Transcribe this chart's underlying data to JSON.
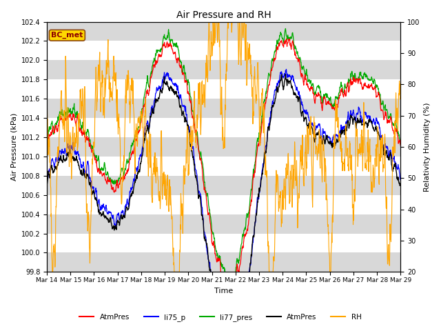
{
  "title": "Air Pressure and RH",
  "xlabel": "Time",
  "ylabel_left": "Air Pressure (kPa)",
  "ylabel_right": "Relativity Humidity (%)",
  "annotation": "BC_met",
  "ylim_left": [
    99.8,
    102.4
  ],
  "ylim_right": [
    20,
    100
  ],
  "yticks_left": [
    99.8,
    100.0,
    100.2,
    100.4,
    100.6,
    100.8,
    101.0,
    101.2,
    101.4,
    101.6,
    101.8,
    102.0,
    102.2,
    102.4
  ],
  "yticks_right": [
    20,
    30,
    40,
    50,
    60,
    70,
    80,
    90,
    100
  ],
  "xtick_labels": [
    "Mar 14",
    "Mar 15",
    "Mar 16",
    "Mar 17",
    "Mar 18",
    "Mar 19",
    "Mar 20",
    "Mar 21",
    "Mar 22",
    "Mar 23",
    "Mar 24",
    "Mar 25",
    "Mar 26",
    "Mar 27",
    "Mar 28",
    "Mar 29"
  ],
  "num_days": 15,
  "colors": {
    "AtmPres_red": "#ff0000",
    "li75_p": "#0000ff",
    "li77_pres": "#00aa00",
    "AtmPres_black": "#000000",
    "RH": "#ffa500"
  },
  "legend_labels": [
    "AtmPres",
    "li75_p",
    "li77_pres",
    "AtmPres",
    "RH"
  ],
  "legend_colors": [
    "#ff0000",
    "#0000ff",
    "#00aa00",
    "#000000",
    "#ffa500"
  ],
  "background_color": "#ffffff",
  "band_colors": [
    "#d8d8d8",
    "#ffffff"
  ]
}
